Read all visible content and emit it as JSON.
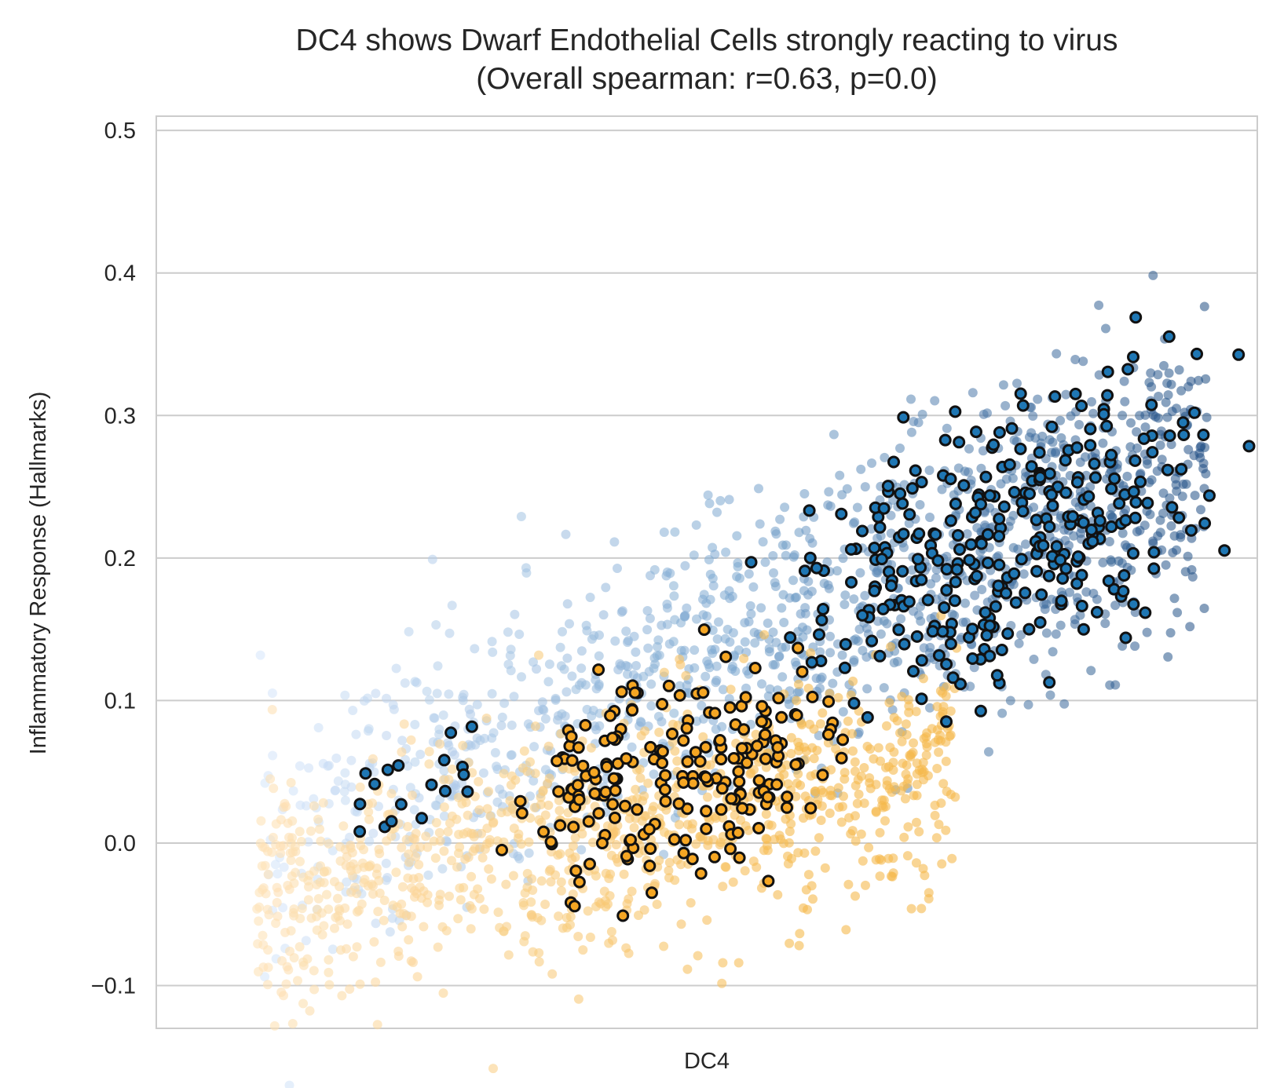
{
  "chart_data": {
    "type": "scatter",
    "title": "DC4 shows Dwarf Endothelial Cells strongly reacting to virus",
    "subtitle": "(Overall spearman: r=0.63, p=0.0)",
    "xlabel": "DC4",
    "ylabel": "Inflammatory Response (Hallmarks)",
    "ylim": [
      -0.13,
      0.51
    ],
    "xlim": [
      -0.05,
      1.05
    ],
    "yticks": [
      -0.1,
      0.0,
      0.1,
      0.2,
      0.3,
      0.4,
      0.5
    ],
    "ytick_labels": [
      "−0.1",
      "0.0",
      "0.1",
      "0.2",
      "0.3",
      "0.4",
      "0.5"
    ],
    "xticks_shown": false,
    "grid": "horizontal",
    "legend": "none",
    "colors": {
      "blue_light": "#d6e6fb",
      "blue_mid": "#7aa6cf",
      "blue_dark": "#1f4e84",
      "orange_light": "#fde2b8",
      "orange_mid": "#f5b94c",
      "highlight_edge": "#111111",
      "highlight_fill_blue": "#1f77b4",
      "highlight_fill_orange": "#f5a623"
    },
    "series": [
      {
        "group": "blue",
        "x_range": [
          0.05,
          1.0
        ],
        "intercept": -0.02,
        "slope": 0.29,
        "noise_sd": 0.05,
        "x": [
          0.15,
          0.25,
          0.35,
          0.45,
          0.55,
          0.65,
          0.75,
          0.85,
          0.95
        ],
        "y": [
          0.03,
          0.07,
          0.1,
          0.12,
          0.15,
          0.18,
          0.2,
          0.22,
          0.24
        ]
      },
      {
        "group": "orange",
        "x_range": [
          0.05,
          0.75
        ],
        "intercept": -0.045,
        "slope": 0.13,
        "noise_sd": 0.04,
        "x": [
          0.1,
          0.2,
          0.3,
          0.4,
          0.5,
          0.6,
          0.7
        ],
        "y": [
          -0.03,
          -0.02,
          0.0,
          0.02,
          0.04,
          0.05,
          0.06
        ]
      }
    ],
    "highlighted": {
      "description": "Dwarf Endothelial Cells",
      "blue_centre_x": [
        0.65,
        0.95
      ],
      "orange_centre_x": [
        0.35,
        0.6
      ]
    }
  }
}
